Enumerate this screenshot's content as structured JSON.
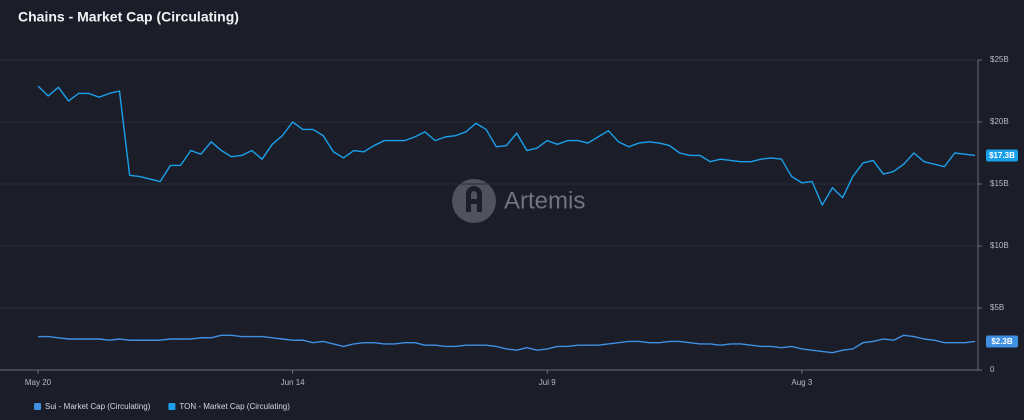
{
  "chart_data": {
    "type": "line",
    "title": "Chains - Market Cap (Circulating)",
    "watermark": "Artemis",
    "categories": [
      "May 20",
      null,
      null,
      null,
      null,
      null,
      null,
      null,
      null,
      null,
      null,
      null,
      null,
      null,
      null,
      null,
      null,
      null,
      null,
      null,
      null,
      null,
      null,
      null,
      null,
      "Jun 14",
      null,
      null,
      null,
      null,
      null,
      null,
      null,
      null,
      null,
      null,
      null,
      null,
      null,
      null,
      null,
      null,
      null,
      null,
      null,
      null,
      null,
      null,
      null,
      null,
      "Jul 9",
      null,
      null,
      null,
      null,
      null,
      null,
      null,
      null,
      null,
      null,
      null,
      null,
      null,
      null,
      null,
      null,
      null,
      null,
      null,
      null,
      null,
      null,
      null,
      null,
      "Aug 3",
      null,
      null,
      null,
      null,
      null,
      null,
      null,
      null,
      null,
      null,
      null,
      null,
      null,
      null,
      null,
      null,
      null
    ],
    "series": [
      {
        "name": "Sui - Market Cap (Circulating)",
        "color": "#3f8fe3",
        "values": [
          2.7,
          2.7,
          2.6,
          2.5,
          2.5,
          2.5,
          2.5,
          2.4,
          2.5,
          2.4,
          2.4,
          2.4,
          2.4,
          2.5,
          2.5,
          2.5,
          2.6,
          2.6,
          2.8,
          2.8,
          2.7,
          2.7,
          2.7,
          2.6,
          2.5,
          2.4,
          2.4,
          2.2,
          2.3,
          2.1,
          1.9,
          2.1,
          2.2,
          2.2,
          2.1,
          2.1,
          2.2,
          2.2,
          2.0,
          2.0,
          1.9,
          1.9,
          2.0,
          2.0,
          2.0,
          1.9,
          1.7,
          1.6,
          1.8,
          1.6,
          1.7,
          1.9,
          1.9,
          2.0,
          2.0,
          2.0,
          2.1,
          2.2,
          2.3,
          2.3,
          2.2,
          2.2,
          2.3,
          2.3,
          2.2,
          2.1,
          2.1,
          2.0,
          2.1,
          2.1,
          2.0,
          1.9,
          1.9,
          1.8,
          1.9,
          1.7,
          1.6,
          1.5,
          1.4,
          1.6,
          1.7,
          2.2,
          2.3,
          2.5,
          2.4,
          2.8,
          2.7,
          2.5,
          2.4,
          2.2,
          2.2,
          2.2,
          2.3
        ],
        "value_labels": [
          null,
          null,
          null,
          null,
          null,
          null,
          null,
          null,
          null,
          null,
          null,
          null,
          null,
          null,
          null,
          null,
          null,
          null,
          null,
          null,
          null,
          null,
          null,
          null,
          null,
          null,
          null,
          null,
          null,
          null,
          null,
          null,
          null,
          null,
          null,
          null,
          null,
          null,
          null,
          null,
          null,
          null,
          null,
          null,
          null,
          null,
          null,
          null,
          null,
          null,
          null,
          null,
          null,
          null,
          null,
          null,
          null,
          null,
          null,
          null,
          null,
          null,
          null,
          null,
          null,
          null,
          null,
          null,
          null,
          null,
          null,
          null,
          null,
          null,
          null,
          null,
          null,
          null,
          null,
          null,
          null,
          null,
          null,
          null,
          null,
          null,
          null,
          null,
          null,
          null,
          null,
          null,
          "$2.3B"
        ]
      },
      {
        "name": "TON - Market Cap (Circulating)",
        "color": "#1aa0ea",
        "values": [
          22.9,
          22.1,
          22.8,
          21.7,
          22.3,
          22.3,
          22.0,
          22.3,
          22.5,
          15.7,
          15.6,
          15.4,
          15.2,
          16.5,
          16.5,
          17.7,
          17.4,
          18.4,
          17.7,
          17.2,
          17.3,
          17.7,
          17.0,
          18.2,
          18.9,
          20.0,
          19.4,
          19.4,
          18.9,
          17.6,
          17.1,
          17.7,
          17.6,
          18.1,
          18.5,
          18.5,
          18.5,
          18.8,
          19.2,
          18.5,
          18.8,
          18.9,
          19.2,
          19.9,
          19.4,
          18.0,
          18.1,
          19.1,
          17.7,
          17.9,
          18.5,
          18.2,
          18.5,
          18.5,
          18.3,
          18.8,
          19.3,
          18.4,
          18.0,
          18.3,
          18.4,
          18.3,
          18.1,
          17.5,
          17.3,
          17.3,
          16.8,
          17.0,
          16.9,
          16.8,
          16.8,
          17.0,
          17.1,
          17.0,
          15.6,
          15.1,
          15.2,
          13.3,
          14.7,
          13.9,
          15.6,
          16.7,
          16.9,
          15.8,
          16.0,
          16.6,
          17.5,
          16.8,
          16.6,
          16.4,
          17.5,
          17.4,
          17.3
        ],
        "value_labels": [
          null,
          null,
          null,
          null,
          null,
          null,
          null,
          null,
          null,
          null,
          null,
          null,
          null,
          null,
          null,
          null,
          null,
          null,
          null,
          null,
          null,
          null,
          null,
          null,
          null,
          null,
          null,
          null,
          null,
          null,
          null,
          null,
          null,
          null,
          null,
          null,
          null,
          null,
          null,
          null,
          null,
          null,
          null,
          null,
          null,
          null,
          null,
          null,
          null,
          null,
          null,
          null,
          null,
          null,
          null,
          null,
          null,
          null,
          null,
          null,
          null,
          null,
          null,
          null,
          null,
          null,
          null,
          null,
          null,
          null,
          null,
          null,
          null,
          null,
          null,
          null,
          null,
          null,
          null,
          null,
          null,
          null,
          null,
          null,
          null,
          null,
          null,
          null,
          null,
          null,
          null,
          null,
          "$17.3B"
        ]
      }
    ],
    "ylim": [
      0,
      25
    ],
    "yticks": [
      {
        "value": 0,
        "label": "0"
      },
      {
        "value": 5,
        "label": "$5B"
      },
      {
        "value": 10,
        "label": "$10B"
      },
      {
        "value": 15,
        "label": "$15B"
      },
      {
        "value": 20,
        "label": "$20B"
      },
      {
        "value": 25,
        "label": "$25B"
      }
    ],
    "y_axis_side": "right",
    "grid": true
  }
}
